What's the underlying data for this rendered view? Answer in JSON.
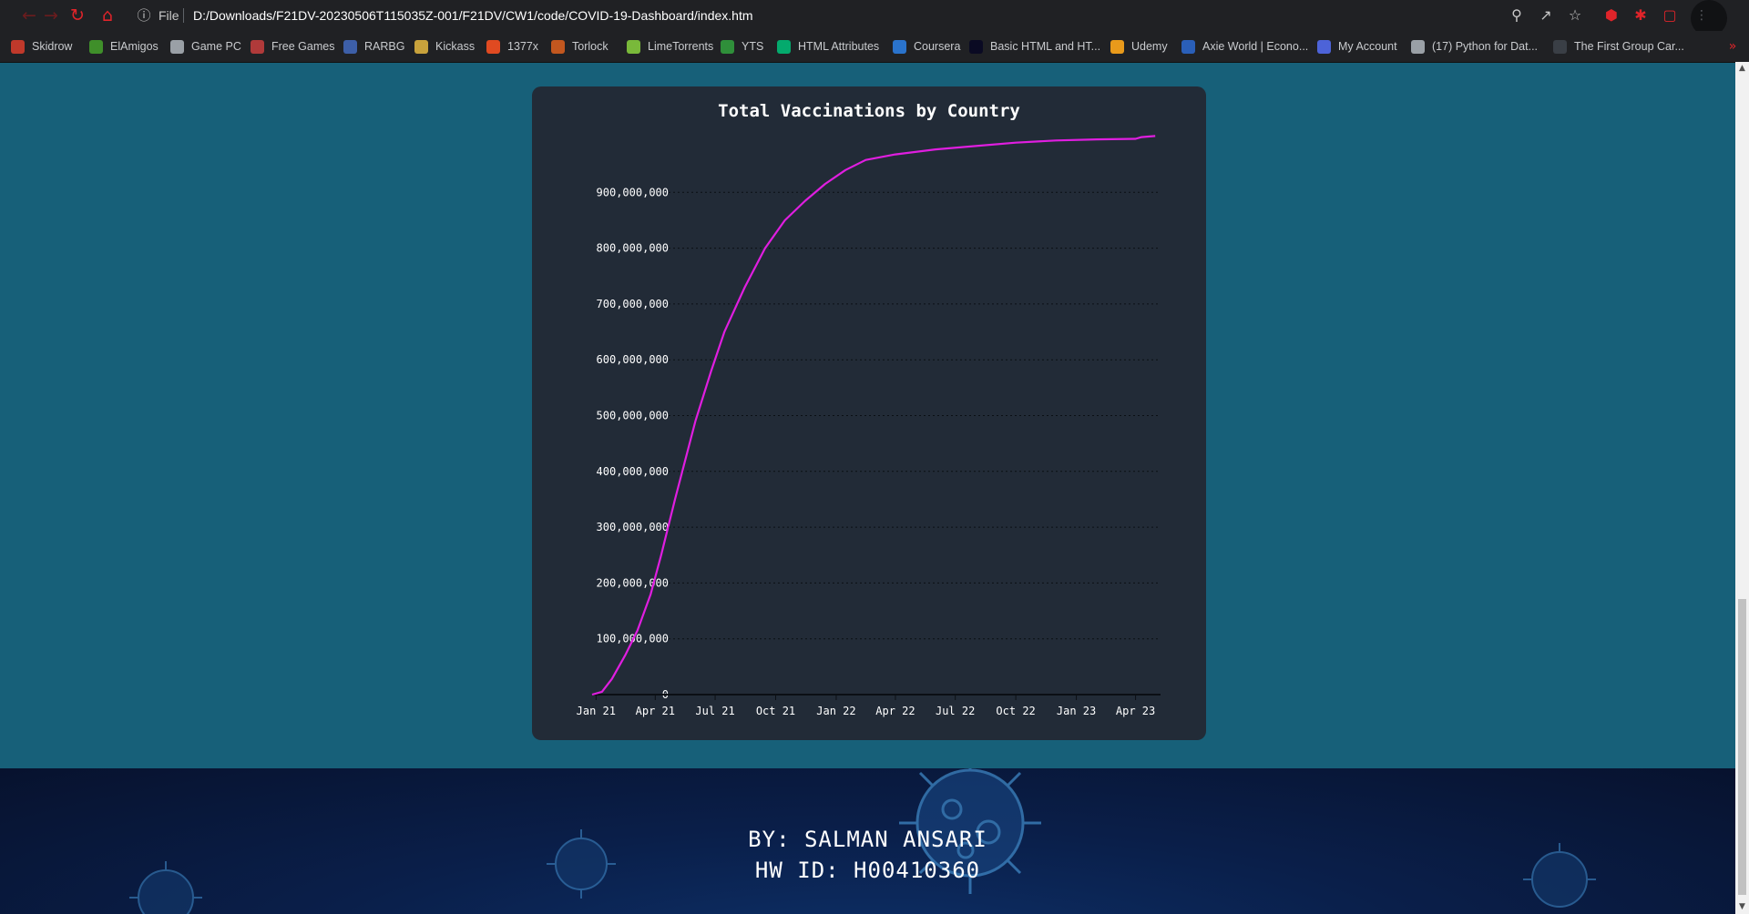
{
  "browser": {
    "scheme_label": "File",
    "url": "D:/Downloads/F21DV-20230506T115035Z-001/F21DV/CW1/code/COVID-19-Dashboard/index.htm",
    "bookmarks": [
      {
        "label": "Skidrow",
        "icon": "skidrow-icon",
        "color": "#c0392b"
      },
      {
        "label": "ElAmigos",
        "icon": "elamigos-icon",
        "color": "#3f8f2a"
      },
      {
        "label": "Game PC",
        "icon": "globe-icon",
        "color": "#9aa0a6"
      },
      {
        "label": "Free Games",
        "icon": "free-games-icon",
        "color": "#b03a3a"
      },
      {
        "label": "RARBG",
        "icon": "rarbg-icon",
        "color": "#3d5fa8"
      },
      {
        "label": "Kickass",
        "icon": "kickass-icon",
        "color": "#c8a23c"
      },
      {
        "label": "1377x",
        "icon": "1377x-icon",
        "color": "#e04a21"
      },
      {
        "label": "Torlock",
        "icon": "torlock-icon",
        "color": "#c2571f"
      },
      {
        "label": "LimeTorrents",
        "icon": "lime-icon",
        "color": "#79b93a"
      },
      {
        "label": "YTS",
        "icon": "yts-icon",
        "color": "#2f8f3a"
      },
      {
        "label": "HTML Attributes",
        "icon": "w3schools-icon",
        "color": "#04aa6d"
      },
      {
        "label": "Coursera",
        "icon": "coursera-icon",
        "color": "#2a73cc"
      },
      {
        "label": "Basic HTML and HT...",
        "icon": "freecodecamp-icon",
        "color": "#0a0a23"
      },
      {
        "label": "Udemy",
        "icon": "udemy-icon",
        "color": "#e89a1b"
      },
      {
        "label": "Axie World | Econo...",
        "icon": "axie-icon",
        "color": "#2a5fb8"
      },
      {
        "label": "My Account",
        "icon": "account-icon",
        "color": "#4d63d8"
      },
      {
        "label": "(17) Python for Dat...",
        "icon": "globe-icon",
        "color": "#9aa0a6"
      },
      {
        "label": "The First Group Car...",
        "icon": "firstgroup-icon",
        "color": "#3a3f46"
      }
    ]
  },
  "colors": {
    "page_bg": "#176079",
    "card_bg": "#222b37",
    "line": "#e01ee0",
    "footer_bg": "#0a1f4a"
  },
  "chart_data": {
    "type": "line",
    "title": "Total Vaccinations by Country",
    "xlabel": "",
    "ylabel": "",
    "x_ticks": [
      "Jan 21",
      "Apr 21",
      "Jul 21",
      "Oct 21",
      "Jan 22",
      "Apr 22",
      "Jul 22",
      "Oct 22",
      "Jan 23",
      "Apr 23"
    ],
    "y_ticks": [
      "0",
      "100,000,000",
      "200,000,000",
      "300,000,000",
      "400,000,000",
      "500,000,000",
      "600,000,000",
      "700,000,000",
      "800,000,000",
      "900,000,000"
    ],
    "y_tick_values": [
      0,
      100000000,
      200000000,
      300000000,
      400000000,
      500000000,
      600000000,
      700000000,
      800000000,
      900000000
    ],
    "xlim": [
      "2020-12-26",
      "2023-05-09"
    ],
    "ylim": [
      0,
      1000000000
    ],
    "grid": "horizontal dotted",
    "legend": "none",
    "series": [
      {
        "color": "#e01ee0",
        "points": [
          {
            "x": "2020-12-26",
            "y": 0
          },
          {
            "x": "2021-01-10",
            "y": 5000000
          },
          {
            "x": "2021-01-25",
            "y": 28000000
          },
          {
            "x": "2021-02-15",
            "y": 72000000
          },
          {
            "x": "2021-03-05",
            "y": 115000000
          },
          {
            "x": "2021-03-25",
            "y": 180000000
          },
          {
            "x": "2021-04-10",
            "y": 250000000
          },
          {
            "x": "2021-05-01",
            "y": 350000000
          },
          {
            "x": "2021-06-01",
            "y": 490000000
          },
          {
            "x": "2021-06-25",
            "y": 580000000
          },
          {
            "x": "2021-07-15",
            "y": 650000000
          },
          {
            "x": "2021-08-15",
            "y": 730000000
          },
          {
            "x": "2021-09-15",
            "y": 800000000
          },
          {
            "x": "2021-10-15",
            "y": 850000000
          },
          {
            "x": "2021-11-15",
            "y": 885000000
          },
          {
            "x": "2021-12-15",
            "y": 915000000
          },
          {
            "x": "2022-01-15",
            "y": 940000000
          },
          {
            "x": "2022-02-15",
            "y": 958000000
          },
          {
            "x": "2022-04-01",
            "y": 968000000
          },
          {
            "x": "2022-06-01",
            "y": 977000000
          },
          {
            "x": "2022-08-01",
            "y": 983000000
          },
          {
            "x": "2022-10-01",
            "y": 989000000
          },
          {
            "x": "2022-12-01",
            "y": 993000000
          },
          {
            "x": "2023-02-01",
            "y": 995000000
          },
          {
            "x": "2023-04-01",
            "y": 996000000
          },
          {
            "x": "2023-04-10",
            "y": 999000000
          },
          {
            "x": "2023-05-01",
            "y": 1001000000
          }
        ]
      }
    ]
  },
  "footer": {
    "author": "BY: SALMAN ANSARI",
    "hw_id": "HW ID: H00410360"
  }
}
